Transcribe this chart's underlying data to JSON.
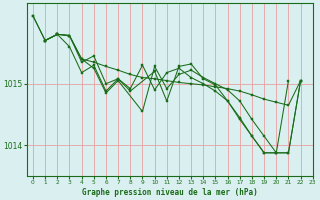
{
  "xlabel": "Graphe pression niveau de la mer (hPa)",
  "xlim": [
    -0.5,
    23
  ],
  "ylim": [
    1013.5,
    1016.3
  ],
  "yticks": [
    1014,
    1015
  ],
  "xticks": [
    0,
    1,
    2,
    3,
    4,
    5,
    6,
    7,
    8,
    9,
    10,
    11,
    12,
    13,
    14,
    15,
    16,
    17,
    18,
    19,
    20,
    21,
    22,
    23
  ],
  "line_color": "#1a6b1a",
  "bg_color": "#daf0f0",
  "grid_color": "#e8a0a0",
  "series": [
    {
      "x": [
        0,
        1,
        2,
        3,
        4,
        5,
        6,
        7,
        8,
        9,
        10,
        11,
        12,
        13,
        14,
        15,
        16,
        17,
        18,
        19,
        20,
        21,
        22
      ],
      "y": [
        1016.1,
        1015.7,
        1015.8,
        1015.78,
        1015.4,
        1015.35,
        1015.28,
        1015.22,
        1015.15,
        1015.1,
        1015.08,
        1015.05,
        1015.02,
        1015.0,
        1014.98,
        1014.95,
        1014.92,
        1014.88,
        1014.82,
        1014.75,
        1014.7,
        1014.65,
        1015.05
      ]
    },
    {
      "x": [
        0,
        1,
        2,
        3,
        4,
        5,
        6,
        7,
        9,
        10,
        11,
        12,
        13,
        14,
        15,
        16,
        17,
        18,
        19,
        20,
        21,
        22
      ],
      "y": [
        1016.1,
        1015.7,
        1015.8,
        1015.78,
        1015.4,
        1015.25,
        1014.85,
        1015.05,
        1014.55,
        1015.28,
        1014.92,
        1015.15,
        1015.22,
        1015.1,
        1015.0,
        1014.9,
        1014.72,
        1014.42,
        1014.15,
        1013.88,
        1013.88,
        1015.05
      ]
    },
    {
      "x": [
        1,
        2,
        3,
        4,
        5,
        6,
        7,
        8,
        9,
        10,
        11,
        12,
        13,
        14,
        15,
        16,
        17,
        18,
        19,
        20,
        21,
        22
      ],
      "y": [
        1015.7,
        1015.8,
        1015.78,
        1015.35,
        1015.45,
        1015.0,
        1015.08,
        1014.92,
        1015.3,
        1014.9,
        1015.18,
        1015.25,
        1015.1,
        1015.0,
        1014.88,
        1014.72,
        1014.45,
        1014.15,
        1013.88,
        1013.88,
        1015.05,
        null
      ]
    },
    {
      "x": [
        1,
        2,
        3,
        4,
        5,
        6,
        7,
        8,
        10,
        11,
        12,
        13,
        14,
        15,
        16,
        17,
        18,
        19,
        20,
        21,
        22
      ],
      "y": [
        1015.7,
        1015.8,
        1015.6,
        1015.18,
        1015.3,
        1014.88,
        1015.08,
        1014.88,
        1015.2,
        1014.72,
        1015.28,
        1015.32,
        1015.08,
        1014.98,
        1014.72,
        1014.42,
        1014.15,
        1013.88,
        1013.88,
        1013.88,
        1015.05
      ]
    }
  ]
}
